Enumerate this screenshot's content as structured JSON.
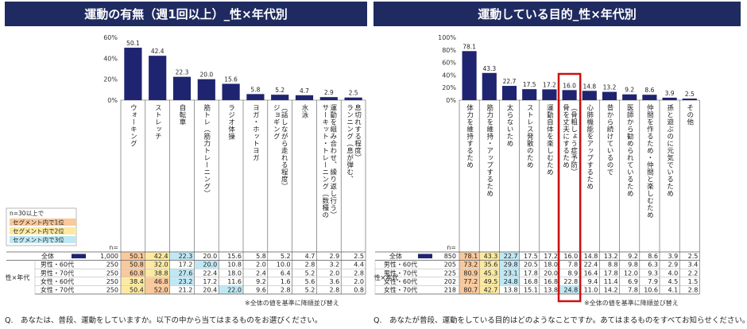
{
  "colors": {
    "bar": "#1f2470",
    "header": "#1f2b60",
    "rank1": "#f9c89b",
    "rank2": "#fdeaa0",
    "rank3": "#bfe8f4",
    "highlight": "#cc1111"
  },
  "panels": [
    {
      "title": "運動の有無（週1回以上）_性×年代別",
      "yticks": [
        "60%",
        "40%",
        "20%",
        "0%"
      ],
      "categories": [
        [
          "ウォーキング"
        ],
        [
          "ストレッチ"
        ],
        [
          "自転車"
        ],
        [
          "筋トレ（筋力トレーニング）"
        ],
        [
          "ラジオ体操"
        ],
        [
          "ヨガ・ホットヨガ"
        ],
        [
          "ジョギング",
          "（話しながら走れる程度）"
        ],
        [
          "水泳"
        ],
        [
          "サーキット・トレーニング（数種の",
          "運動を組み合わせ、繰り返し行う）"
        ],
        [
          "ランニング（息が弾む、",
          "息切れする程度）"
        ]
      ],
      "legend": {
        "title": "n=30以上で",
        "items": [
          "セグメント内で1位",
          "セグメント内で2位",
          "セグメント内で3位"
        ]
      },
      "n_label": "n=",
      "group_label": "性×年代",
      "rows": [
        {
          "label": "全体",
          "n": "1,000",
          "values": [
            "50.1",
            "42.4",
            "22.3",
            "20.0",
            "15.6",
            "5.8",
            "5.2",
            "4.7",
            "2.9",
            "2.5"
          ],
          "ranks": [
            1,
            2,
            3,
            0,
            0,
            0,
            0,
            0,
            0,
            0
          ]
        },
        {
          "label": "男性・60代",
          "n": "250",
          "values": [
            "50.8",
            "32.0",
            "17.2",
            "20.0",
            "10.8",
            "2.0",
            "10.0",
            "2.8",
            "3.2",
            "4.4"
          ],
          "ranks": [
            1,
            2,
            0,
            3,
            0,
            0,
            0,
            0,
            0,
            0
          ]
        },
        {
          "label": "男性・70代",
          "n": "250",
          "values": [
            "60.8",
            "38.8",
            "27.6",
            "22.4",
            "18.0",
            "2.4",
            "6.4",
            "5.2",
            "2.0",
            "2.8"
          ],
          "ranks": [
            1,
            2,
            3,
            0,
            0,
            0,
            0,
            0,
            0,
            0
          ]
        },
        {
          "label": "女性・60代",
          "n": "250",
          "values": [
            "38.4",
            "46.8",
            "23.2",
            "17.2",
            "11.6",
            "9.2",
            "1.6",
            "5.6",
            "3.6",
            "2.0"
          ],
          "ranks": [
            2,
            1,
            3,
            0,
            0,
            0,
            0,
            0,
            0,
            0
          ]
        },
        {
          "label": "女性・70代",
          "n": "250",
          "values": [
            "50.4",
            "52.0",
            "21.2",
            "20.4",
            "22.0",
            "9.6",
            "2.8",
            "5.2",
            "2.8",
            "0.8"
          ],
          "ranks": [
            2,
            1,
            0,
            0,
            3,
            0,
            0,
            0,
            0,
            0
          ]
        }
      ],
      "footnote": "※全体の値を基準に降順並び替え",
      "question": "Q.　あなたは、普段、運動をしていますか。以下の中から当てはまるものをお選びください。"
    },
    {
      "title": "運動している目的_性×年代別",
      "yticks": [
        "100%",
        "80%",
        "60%",
        "40%",
        "20%",
        "0%"
      ],
      "categories": [
        [
          "体力を維持するため"
        ],
        [
          "筋力を維持・アップするため"
        ],
        [
          "太らないため"
        ],
        [
          "ストレス発散のため"
        ],
        [
          "運動自体を楽しむため"
        ],
        [
          "骨を丈夫にするため",
          "（骨粗しょう症予防）"
        ],
        [
          "心肺機能をアップするため"
        ],
        [
          "昔から続けているので"
        ],
        [
          "医師から勧められているため"
        ],
        [
          "仲間を作るため・仲間と楽しむため"
        ],
        [
          "孫と遊ぶのに元気でいるため"
        ],
        [
          "その他"
        ]
      ],
      "n_label": "n=",
      "group_label": "性×年代",
      "rows": [
        {
          "label": "全体",
          "n": "850",
          "values": [
            "78.1",
            "43.3",
            "22.7",
            "17.5",
            "17.2",
            "16.0",
            "14.8",
            "13.2",
            "9.2",
            "8.6",
            "3.9",
            "2.5"
          ],
          "ranks": [
            1,
            2,
            3,
            0,
            0,
            0,
            0,
            0,
            0,
            0,
            0,
            0
          ]
        },
        {
          "label": "男性・60代",
          "n": "205",
          "values": [
            "73.2",
            "35.6",
            "29.8",
            "20.5",
            "18.0",
            "7.8",
            "22.4",
            "8.8",
            "9.8",
            "6.3",
            "2.9",
            "3.4"
          ],
          "ranks": [
            1,
            2,
            3,
            0,
            0,
            0,
            0,
            0,
            0,
            0,
            0,
            0
          ]
        },
        {
          "label": "男性・70代",
          "n": "225",
          "values": [
            "80.9",
            "45.3",
            "23.1",
            "17.8",
            "20.0",
            "8.9",
            "16.4",
            "17.8",
            "12.0",
            "9.3",
            "4.0",
            "2.2"
          ],
          "ranks": [
            1,
            2,
            3,
            0,
            0,
            0,
            0,
            0,
            0,
            0,
            0,
            0
          ]
        },
        {
          "label": "女性・60代",
          "n": "202",
          "values": [
            "77.2",
            "49.5",
            "24.8",
            "16.8",
            "16.8",
            "22.8",
            "9.4",
            "11.4",
            "6.9",
            "7.9",
            "4.5",
            "1.5"
          ],
          "ranks": [
            1,
            2,
            3,
            0,
            0,
            0,
            0,
            0,
            0,
            0,
            0,
            0
          ]
        },
        {
          "label": "女性・70代",
          "n": "218",
          "n2": "",
          "values": [
            "80.7",
            "42.7",
            "13.8",
            "15.1",
            "13.8",
            "24.8",
            "11.0",
            "14.2",
            "7.8",
            "10.6",
            "4.1",
            "2.8"
          ],
          "ranks": [
            1,
            2,
            0,
            0,
            0,
            3,
            0,
            0,
            0,
            0,
            0,
            0
          ]
        }
      ],
      "footnote": "※全体の値を基準に降順並び替え",
      "question": "Q.　あなたが普段、運動をしている目的はどのようなことですか。あてはまるものをすべてお知らせください。(MA)"
    }
  ],
  "chart_data": [
    {
      "type": "bar",
      "title": "運動の有無（週1回以上）_性×年代別",
      "categories": [
        "ウォーキング",
        "ストレッチ",
        "自転車",
        "筋トレ（筋力トレーニング）",
        "ラジオ体操",
        "ヨガ・ホットヨガ",
        "ジョギング（話しながら走れる程度）",
        "水泳",
        "サーキット・トレーニング（数種の運動を組み合わせ、繰り返し行う）",
        "ランニング（息が弾む、息切れする程度）"
      ],
      "values": [
        50.1,
        42.4,
        22.3,
        20.0,
        15.6,
        5.8,
        5.2,
        4.7,
        2.9,
        2.5
      ],
      "ylim": [
        0,
        60
      ]
    },
    {
      "type": "bar",
      "title": "運動している目的_性×年代別",
      "categories": [
        "体力を維持するため",
        "筋力を維持・アップするため",
        "太らないため",
        "ストレス発散のため",
        "運動自体を楽しむため",
        "骨を丈夫にするため（骨粗しょう症予防）",
        "心肺機能をアップするため",
        "昔から続けているので",
        "医師から勧められているため",
        "仲間を作るため・仲間と楽しむため",
        "孫と遊ぶのに元気でいるため",
        "その他"
      ],
      "values": [
        78.1,
        43.3,
        22.7,
        17.5,
        17.2,
        16.0,
        14.8,
        13.2,
        9.2,
        8.6,
        3.9,
        2.5
      ],
      "ylim": [
        0,
        100
      ]
    }
  ]
}
